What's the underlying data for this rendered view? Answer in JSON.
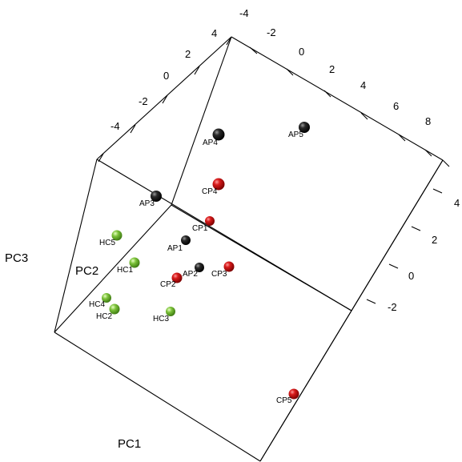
{
  "chart_data": {
    "type": "scatter",
    "projection": "3d",
    "xlabel": "PC1",
    "ylabel": "PC2",
    "zlabel": "PC3",
    "grid": false,
    "colors": {
      "AP": "#111111",
      "CP": "#c8141a",
      "HC": "#72b62e"
    },
    "axes": [
      {
        "name": "top-front",
        "ticks": [
          "-4",
          "-2",
          "0",
          "2",
          "4",
          "6",
          "8"
        ]
      },
      {
        "name": "top-left",
        "ticks": [
          "4",
          "2",
          "0",
          "-2",
          "-4"
        ]
      },
      {
        "name": "right",
        "ticks": [
          "4",
          "2",
          "0",
          "-2"
        ]
      }
    ],
    "points": [
      {
        "label": "AP1",
        "group": "AP"
      },
      {
        "label": "AP2",
        "group": "AP"
      },
      {
        "label": "AP3",
        "group": "AP"
      },
      {
        "label": "AP4",
        "group": "AP"
      },
      {
        "label": "AP5",
        "group": "AP"
      },
      {
        "label": "CP1",
        "group": "CP"
      },
      {
        "label": "CP2",
        "group": "CP"
      },
      {
        "label": "CP3",
        "group": "CP"
      },
      {
        "label": "CP4",
        "group": "CP"
      },
      {
        "label": "CP5",
        "group": "CP"
      },
      {
        "label": "HC1",
        "group": "HC"
      },
      {
        "label": "HC2",
        "group": "HC"
      },
      {
        "label": "HC3",
        "group": "HC"
      },
      {
        "label": "HC4",
        "group": "HC"
      },
      {
        "label": "HC5",
        "group": "HC"
      }
    ]
  }
}
